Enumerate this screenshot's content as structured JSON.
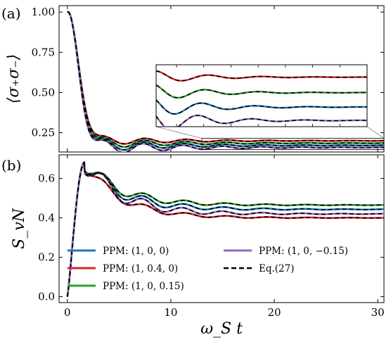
{
  "chart_data": [
    {
      "panel_label": "(a)",
      "type": "line",
      "ylabel": "⟨σ₊σ₋⟩",
      "xlim": [
        -0.8,
        30.6
      ],
      "ylim": [
        0.13,
        1.04
      ],
      "yticks": [
        "0.25",
        "0.50",
        "0.75",
        "1.00"
      ],
      "ytick_values": [
        0.25,
        0.5,
        0.75,
        1.0
      ],
      "inset": {
        "xlim": [
          13,
          30.6
        ],
        "ylim": [
          0.145,
          0.215
        ]
      },
      "series": [
        {
          "params": [
            1,
            0.4,
            0
          ],
          "color": "#d62728",
          "osc": [
            0.3,
            0.28,
            0.5
          ],
          "tail": 0.2
        },
        {
          "params": [
            1,
            0,
            0.15
          ],
          "color": "#2ca02c",
          "osc": [
            0.5,
            0.4,
            0.6
          ],
          "tail": 0.185
        },
        {
          "params": [
            1,
            0,
            0
          ],
          "color": "#1f77b4",
          "osc": [
            0.7,
            0.6,
            0.7
          ],
          "tail": 0.171
        },
        {
          "params": [
            1,
            0,
            -0.15
          ],
          "color": "#9467bd",
          "osc": [
            0.9,
            0.75,
            0.8
          ],
          "tail": 0.158
        }
      ]
    },
    {
      "panel_label": "(b)",
      "type": "line",
      "ylabel": "S_vN",
      "xlabel": "ω_S t",
      "xlim": [
        -0.8,
        30.6
      ],
      "ylim": [
        -0.03,
        0.72
      ],
      "xticks": [
        "0",
        "10",
        "20",
        "30"
      ],
      "xtick_values": [
        0,
        10,
        20,
        30
      ],
      "yticks": [
        "0.0",
        "0.2",
        "0.4",
        "0.6"
      ],
      "ytick_values": [
        0,
        0.2,
        0.4,
        0.6
      ],
      "series": [
        {
          "params": [
            1,
            0.4,
            0
          ],
          "color": "#d62728",
          "peak": 0.675,
          "osc": [
            0.3,
            0.3,
            0.5
          ],
          "tail": 0.4
        },
        {
          "params": [
            1,
            0,
            0.15
          ],
          "color": "#2ca02c",
          "peak": 0.678,
          "osc": [
            0.5,
            0.45,
            0.6
          ],
          "tail": 0.465
        },
        {
          "params": [
            1,
            0,
            0
          ],
          "color": "#1f77b4",
          "peak": 0.68,
          "osc": [
            0.7,
            0.6,
            0.7
          ],
          "tail": 0.443
        },
        {
          "params": [
            1,
            0,
            -0.15
          ],
          "color": "#9467bd",
          "peak": 0.682,
          "osc": [
            0.9,
            0.75,
            0.8
          ],
          "tail": 0.42
        }
      ]
    }
  ],
  "legend": {
    "items": [
      {
        "label": "PPM: (1, 0, 0)",
        "color": "#1f77b4",
        "dash": false
      },
      {
        "label": "PPM: (1, 0.4, 0)",
        "color": "#d62728",
        "dash": false
      },
      {
        "label": "PPM: (1, 0, 0.15)",
        "color": "#2ca02c",
        "dash": false
      },
      {
        "label": "PPM: (1, 0, −0.15)",
        "color": "#9467bd",
        "dash": false
      },
      {
        "label": "Eq.(27)",
        "color": "#000000",
        "dash": true
      }
    ]
  }
}
